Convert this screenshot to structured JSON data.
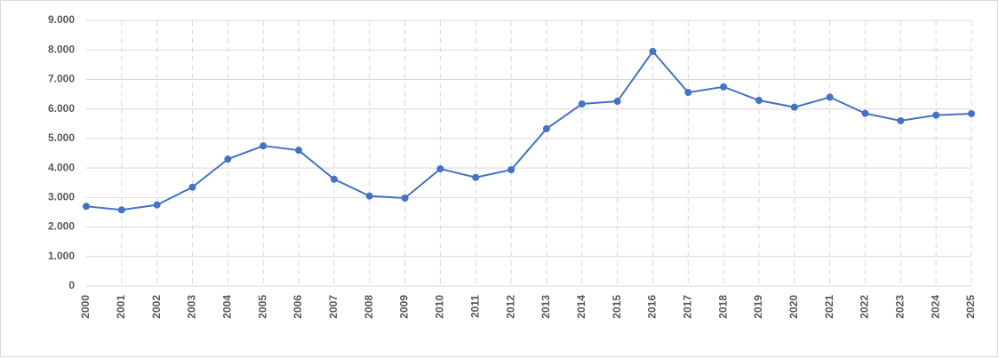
{
  "chart_data": {
    "type": "line",
    "categories": [
      "2000",
      "2001",
      "2002",
      "2003",
      "2004",
      "2005",
      "2006",
      "2007",
      "2008",
      "2009",
      "2010",
      "2011",
      "2012",
      "2013",
      "2014",
      "2015",
      "2016",
      "2017",
      "2018",
      "2019",
      "2020",
      "2021",
      "2022",
      "2023",
      "2024",
      "2025"
    ],
    "series": [
      {
        "color": "#4472c4",
        "values": [
          2700,
          2580,
          2750,
          3350,
          4300,
          4750,
          4600,
          3620,
          3050,
          2980,
          3970,
          3680,
          3940,
          5330,
          6170,
          6260,
          7950,
          6560,
          6750,
          6290,
          6060,
          6400,
          5850,
          5600,
          5790,
          5840
        ]
      }
    ],
    "ylim": [
      0,
      9000
    ],
    "yticks": [
      0,
      {
        "value": 1000,
        "label": "1.000"
      },
      {
        "value": 2000,
        "label": "2.000"
      },
      {
        "value": 3000,
        "label": "3.000"
      },
      {
        "value": 4000,
        "label": "4.000"
      },
      {
        "value": 5000,
        "label": "5.000"
      },
      {
        "value": 6000,
        "label": "6.000"
      },
      {
        "value": 7000,
        "label": "7.000"
      },
      {
        "value": 8000,
        "label": "8.000"
      },
      {
        "value": 9000,
        "label": "9.000"
      }
    ],
    "grid": true
  }
}
